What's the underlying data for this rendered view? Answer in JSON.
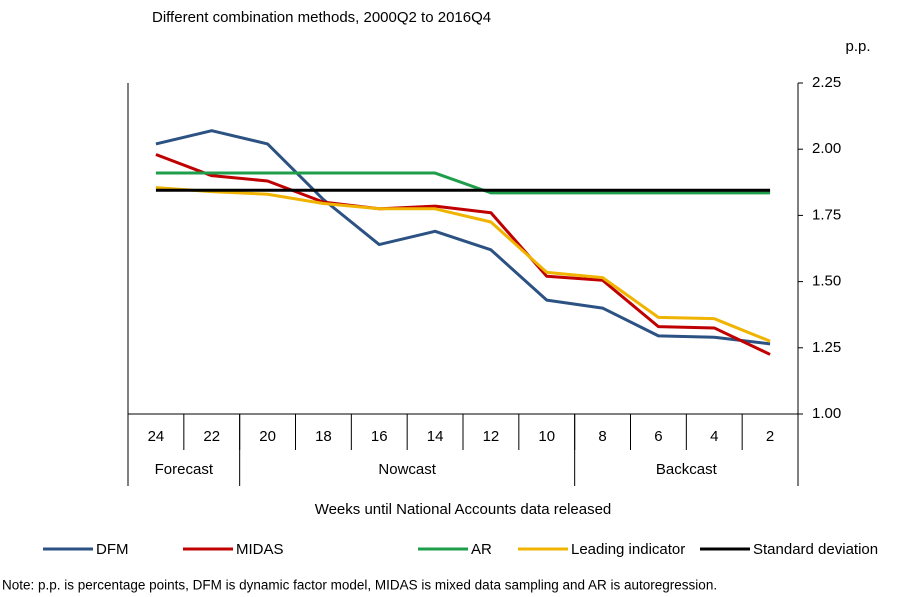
{
  "chart_data": {
    "type": "line",
    "subtitle": "Different combination methods, 2000Q2 to 2016Q4",
    "y_unit": "p.p.",
    "x_label": "Weeks until National Accounts data released",
    "note": "Note: p.p. is percentage points, DFM is dynamic factor model, MIDAS is mixed data sampling and AR is autoregression.",
    "categories": [
      "24",
      "22",
      "20",
      "18",
      "16",
      "14",
      "12",
      "10",
      "8",
      "6",
      "4",
      "2"
    ],
    "x_groups": [
      {
        "label": "Forecast",
        "span": 2
      },
      {
        "label": "Nowcast",
        "span": 6
      },
      {
        "label": "Backcast",
        "span": 4
      }
    ],
    "ylim": [
      1.0,
      2.25
    ],
    "yticks": [
      2.25,
      {
        "value": 2.0,
        "label": "2.00"
      },
      1.75,
      {
        "value": 1.5,
        "label": "1.50"
      },
      1.25,
      {
        "value": 1.0,
        "label": "1.00"
      }
    ],
    "y_axis_side": "right",
    "grid": false,
    "series": [
      {
        "name": "DFM",
        "color": "#2b5283",
        "values": [
          2.02,
          2.07,
          2.02,
          1.81,
          1.64,
          1.69,
          1.62,
          1.43,
          1.4,
          1.295,
          1.29,
          1.265
        ]
      },
      {
        "name": "MIDAS",
        "color": "#c00000",
        "values": [
          1.98,
          1.9,
          1.88,
          1.8,
          1.775,
          1.785,
          1.76,
          1.52,
          1.505,
          1.33,
          1.325,
          1.225
        ]
      },
      {
        "name": "AR",
        "color": "#1e9e4a",
        "values": [
          1.91,
          1.91,
          1.91,
          1.91,
          1.91,
          1.91,
          1.835,
          1.835,
          1.835,
          1.835,
          1.835,
          1.835
        ]
      },
      {
        "name": "Leading indicator",
        "color": "#f0b400",
        "values": [
          1.855,
          1.84,
          1.83,
          1.795,
          1.775,
          1.775,
          1.725,
          1.535,
          1.515,
          1.365,
          1.36,
          1.275
        ]
      },
      {
        "name": "Standard deviation",
        "color": "#000000",
        "values": [
          1.845,
          1.845,
          1.845,
          1.845,
          1.845,
          1.845,
          1.845,
          1.845,
          1.845,
          1.845,
          1.845,
          1.845
        ]
      }
    ]
  }
}
